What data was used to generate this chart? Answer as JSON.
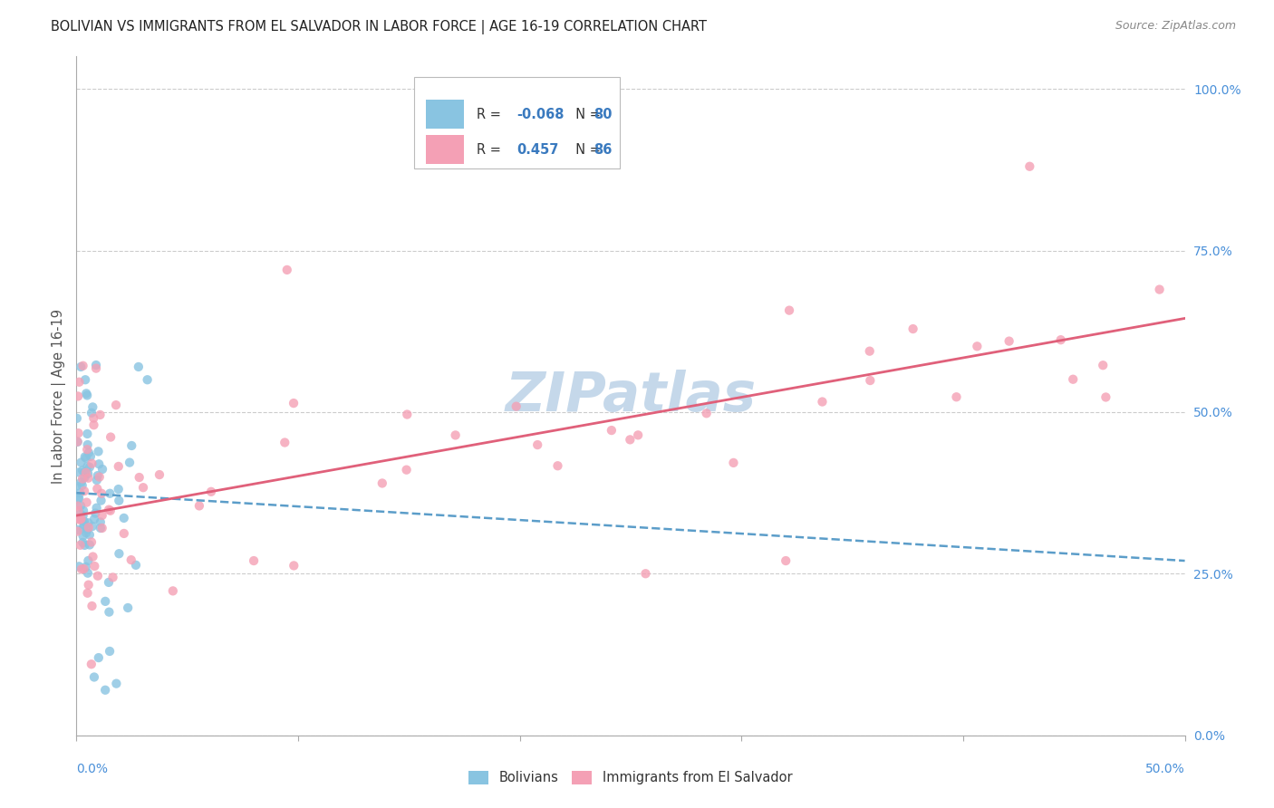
{
  "title": "BOLIVIAN VS IMMIGRANTS FROM EL SALVADOR IN LABOR FORCE | AGE 16-19 CORRELATION CHART",
  "source": "Source: ZipAtlas.com",
  "ylabel": "In Labor Force | Age 16-19",
  "xlim": [
    0.0,
    0.5
  ],
  "ylim": [
    0.0,
    1.05
  ],
  "blue_R": -0.068,
  "blue_N": 80,
  "pink_R": 0.457,
  "pink_N": 86,
  "blue_color": "#89c4e1",
  "pink_color": "#f4a0b5",
  "trend_blue_color": "#5b9dc9",
  "trend_pink_color": "#e0607a",
  "watermark": "ZIPatlas",
  "watermark_color": "#c5d8ea",
  "legend_R_color": "#3a7abf",
  "legend_N_color": "#3a7abf",
  "grid_color": "#cccccc",
  "spine_color": "#aaaaaa",
  "right_tick_color": "#4a90d9",
  "ytick_vals": [
    0.0,
    0.25,
    0.5,
    0.75,
    1.0
  ],
  "ytick_labels": [
    "0.0%",
    "25.0%",
    "50.0%",
    "75.0%",
    "100.0%"
  ]
}
